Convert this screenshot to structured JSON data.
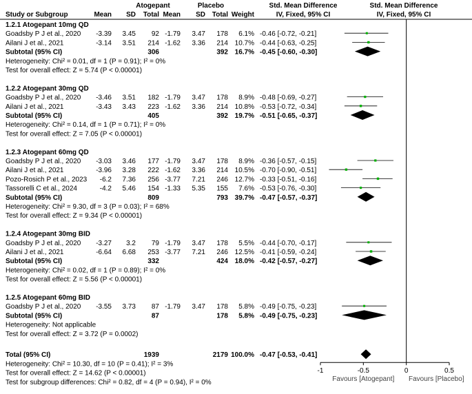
{
  "chart_data": {
    "type": "forest",
    "headers": {
      "study": "Study or Subgroup",
      "group1": "Atogepant",
      "group2": "Placebo",
      "mean": "Mean",
      "sd": "SD",
      "total": "Total",
      "weight": "Weight",
      "effect_title": "Std. Mean Difference",
      "effect_method": "IV, Fixed, 95% CI"
    },
    "subgroups": [
      {
        "title": "1.2.1 Atogepant 10mg QD",
        "studies": [
          {
            "name": "Goadsby P J et al., 2020",
            "m1": "-3.39",
            "sd1": "3.45",
            "n1": "92",
            "m2": "-1.79",
            "sd2": "3.47",
            "n2": "178",
            "weight": "6.1%",
            "ci_text": "-0.46 [-0.72, -0.21]",
            "est": -0.46,
            "lo": -0.72,
            "hi": -0.21,
            "w": 6.1
          },
          {
            "name": "Ailani J et al., 2021",
            "m1": "-3.14",
            "sd1": "3.51",
            "n1": "214",
            "m2": "-1.62",
            "sd2": "3.36",
            "n2": "214",
            "weight": "10.7%",
            "ci_text": "-0.44 [-0.63, -0.25]",
            "est": -0.44,
            "lo": -0.63,
            "hi": -0.25,
            "w": 10.7
          }
        ],
        "subtotal": {
          "label": "Subtotal (95% CI)",
          "n1": "306",
          "n2": "392",
          "weight": "16.7%",
          "ci_text": "-0.45 [-0.60, -0.30]",
          "est": -0.45,
          "lo": -0.6,
          "hi": -0.3
        },
        "heterogeneity": "Heterogeneity: Chi² = 0.01, df = 1 (P = 0.91); I² = 0%",
        "overall": "Test for overall effect: Z = 5.74 (P < 0.00001)"
      },
      {
        "title": "1.2.2 Atogepant 30mg QD",
        "studies": [
          {
            "name": "Goadsby P J et al., 2020",
            "m1": "-3.46",
            "sd1": "3.51",
            "n1": "182",
            "m2": "-1.79",
            "sd2": "3.47",
            "n2": "178",
            "weight": "8.9%",
            "ci_text": "-0.48 [-0.69, -0.27]",
            "est": -0.48,
            "lo": -0.69,
            "hi": -0.27,
            "w": 8.9
          },
          {
            "name": "Ailani J et al., 2021",
            "m1": "-3.43",
            "sd1": "3.43",
            "n1": "223",
            "m2": "-1.62",
            "sd2": "3.36",
            "n2": "214",
            "weight": "10.8%",
            "ci_text": "-0.53 [-0.72, -0.34]",
            "est": -0.53,
            "lo": -0.72,
            "hi": -0.34,
            "w": 10.8
          }
        ],
        "subtotal": {
          "label": "Subtotal (95% CI)",
          "n1": "405",
          "n2": "392",
          "weight": "19.7%",
          "ci_text": "-0.51 [-0.65, -0.37]",
          "est": -0.51,
          "lo": -0.65,
          "hi": -0.37
        },
        "heterogeneity": "Heterogeneity: Chi² = 0.14, df = 1 (P = 0.71); I² = 0%",
        "overall": "Test for overall effect: Z = 7.05 (P < 0.00001)"
      },
      {
        "title": "1.2.3 Atogepant 60mg QD",
        "studies": [
          {
            "name": "Goadsby P J et al., 2020",
            "m1": "-3.03",
            "sd1": "3.46",
            "n1": "177",
            "m2": "-1.79",
            "sd2": "3.47",
            "n2": "178",
            "weight": "8.9%",
            "ci_text": "-0.36 [-0.57, -0.15]",
            "est": -0.36,
            "lo": -0.57,
            "hi": -0.15,
            "w": 8.9
          },
          {
            "name": "Ailani J et al., 2021",
            "m1": "-3.96",
            "sd1": "3.28",
            "n1": "222",
            "m2": "-1.62",
            "sd2": "3.36",
            "n2": "214",
            "weight": "10.5%",
            "ci_text": "-0.70 [-0.90, -0.51]",
            "est": -0.7,
            "lo": -0.9,
            "hi": -0.51,
            "w": 10.5
          },
          {
            "name": "Pozo-Rosich P et al., 2023",
            "m1": "-6.2",
            "sd1": "7.36",
            "n1": "256",
            "m2": "-3.77",
            "sd2": "7.21",
            "n2": "246",
            "weight": "12.7%",
            "ci_text": "-0.33 [-0.51, -0.16]",
            "est": -0.33,
            "lo": -0.51,
            "hi": -0.16,
            "w": 12.7
          },
          {
            "name": "Tassorelli C et al., 2024",
            "m1": "-4.2",
            "sd1": "5.46",
            "n1": "154",
            "m2": "-1.33",
            "sd2": "5.35",
            "n2": "155",
            "weight": "7.6%",
            "ci_text": "-0.53 [-0.76, -0.30]",
            "est": -0.53,
            "lo": -0.76,
            "hi": -0.3,
            "w": 7.6
          }
        ],
        "subtotal": {
          "label": "Subtotal (95% CI)",
          "n1": "809",
          "n2": "793",
          "weight": "39.7%",
          "ci_text": "-0.47 [-0.57, -0.37]",
          "est": -0.47,
          "lo": -0.57,
          "hi": -0.37
        },
        "heterogeneity": "Heterogeneity: Chi² = 9.30, df = 3 (P = 0.03); I² = 68%",
        "overall": "Test for overall effect: Z = 9.34 (P < 0.00001)"
      },
      {
        "title": "1.2.4 Atogepant 30mg BID",
        "studies": [
          {
            "name": "Goadsby P J et al., 2020",
            "m1": "-3.27",
            "sd1": "3.2",
            "n1": "79",
            "m2": "-1.79",
            "sd2": "3.47",
            "n2": "178",
            "weight": "5.5%",
            "ci_text": "-0.44 [-0.70, -0.17]",
            "est": -0.44,
            "lo": -0.7,
            "hi": -0.17,
            "w": 5.5
          },
          {
            "name": "Ailani J et al., 2021",
            "m1": "-6.64",
            "sd1": "6.68",
            "n1": "253",
            "m2": "-3.77",
            "sd2": "7.21",
            "n2": "246",
            "weight": "12.5%",
            "ci_text": "-0.41 [-0.59, -0.24]",
            "est": -0.41,
            "lo": -0.59,
            "hi": -0.24,
            "w": 12.5
          }
        ],
        "subtotal": {
          "label": "Subtotal (95% CI)",
          "n1": "332",
          "n2": "424",
          "weight": "18.0%",
          "ci_text": "-0.42 [-0.57, -0.27]",
          "est": -0.42,
          "lo": -0.57,
          "hi": -0.27
        },
        "heterogeneity": "Heterogeneity: Chi² = 0.02, df = 1 (P = 0.89); I² = 0%",
        "overall": "Test for overall effect: Z = 5.56 (P < 0.00001)"
      },
      {
        "title": "1.2.5 Atogepant 60mg BID",
        "studies": [
          {
            "name": "Goadsby P J et al., 2020",
            "m1": "-3.55",
            "sd1": "3.73",
            "n1": "87",
            "m2": "-1.79",
            "sd2": "3.47",
            "n2": "178",
            "weight": "5.8%",
            "ci_text": "-0.49 [-0.75, -0.23]",
            "est": -0.49,
            "lo": -0.75,
            "hi": -0.23,
            "w": 5.8
          }
        ],
        "subtotal": {
          "label": "Subtotal (95% CI)",
          "n1": "87",
          "n2": "178",
          "weight": "5.8%",
          "ci_text": "-0.49 [-0.75, -0.23]",
          "est": -0.49,
          "lo": -0.75,
          "hi": -0.23
        },
        "heterogeneity": "Heterogeneity: Not applicable",
        "overall": "Test for overall effect: Z = 3.72 (P = 0.0002)"
      }
    ],
    "total": {
      "label": "Total (95% CI)",
      "n1": "1939",
      "n2": "2179",
      "weight": "100.0%",
      "ci_text": "-0.47 [-0.53, -0.41]",
      "est": -0.47,
      "lo": -0.53,
      "hi": -0.41,
      "heterogeneity": "Heterogeneity: Chi² = 10.30, df = 10 (P = 0.41); I² = 3%",
      "overall": "Test for overall effect: Z = 14.62 (P < 0.00001)",
      "subgroup_diff": "Test for subgroup differences: Chi² = 0.82, df = 4 (P = 0.94), I² = 0%"
    },
    "axis": {
      "xlim": [
        -1,
        0.5
      ],
      "ticks": [
        -1,
        -0.5,
        0,
        0.5
      ],
      "tick_labels": [
        "-1",
        "-0.5",
        "0",
        "0.5"
      ],
      "favours_left": "Favours [Atogepant]",
      "favours_right": "Favours [Placebo]"
    },
    "colors": {
      "square": "#00b000",
      "diamond": "#000000",
      "line": "#000000"
    }
  }
}
